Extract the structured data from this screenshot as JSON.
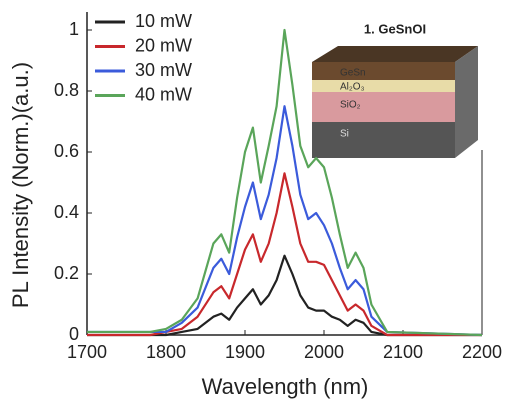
{
  "chart_data": {
    "type": "line",
    "x_label": "Wavelength (nm)",
    "y_label": "PL Intensity (Norm.)(a.u.)",
    "x": [
      1700,
      1780,
      1800,
      1820,
      1840,
      1860,
      1870,
      1880,
      1890,
      1900,
      1910,
      1920,
      1930,
      1940,
      1950,
      1960,
      1970,
      1980,
      1990,
      2000,
      2010,
      2020,
      2030,
      2040,
      2050,
      2060,
      2080,
      2200
    ],
    "series": [
      {
        "name": "10 mW",
        "color": "#222222",
        "values": [
          0,
          0,
          0,
          0.01,
          0.02,
          0.06,
          0.07,
          0.05,
          0.09,
          0.12,
          0.15,
          0.1,
          0.13,
          0.18,
          0.26,
          0.2,
          0.13,
          0.09,
          0.08,
          0.08,
          0.06,
          0.05,
          0.03,
          0.05,
          0.04,
          0.01,
          0,
          0
        ]
      },
      {
        "name": "20 mW",
        "color": "#c8282c",
        "values": [
          0,
          0,
          0.01,
          0.02,
          0.06,
          0.14,
          0.16,
          0.12,
          0.2,
          0.28,
          0.33,
          0.24,
          0.3,
          0.4,
          0.53,
          0.42,
          0.3,
          0.24,
          0.24,
          0.23,
          0.18,
          0.13,
          0.08,
          0.1,
          0.08,
          0.03,
          0,
          0
        ]
      },
      {
        "name": "30 mW",
        "color": "#3b5bdb",
        "values": [
          0.01,
          0.01,
          0.01,
          0.04,
          0.09,
          0.22,
          0.25,
          0.2,
          0.32,
          0.42,
          0.5,
          0.38,
          0.46,
          0.58,
          0.75,
          0.62,
          0.46,
          0.38,
          0.4,
          0.36,
          0.3,
          0.22,
          0.15,
          0.18,
          0.15,
          0.06,
          0.01,
          0
        ]
      },
      {
        "name": "40 mW",
        "color": "#5aa55a",
        "values": [
          0.01,
          0.01,
          0.02,
          0.05,
          0.12,
          0.3,
          0.33,
          0.27,
          0.45,
          0.6,
          0.68,
          0.5,
          0.62,
          0.75,
          1.0,
          0.82,
          0.62,
          0.55,
          0.58,
          0.55,
          0.45,
          0.33,
          0.22,
          0.27,
          0.22,
          0.1,
          0.01,
          0
        ]
      }
    ],
    "xlim": [
      1700,
      2200
    ],
    "xticks": [
      1700,
      1800,
      1900,
      2000,
      2100,
      2200
    ],
    "ylim": [
      0,
      1
    ],
    "yticks": [
      0,
      0.2,
      0.4,
      0.6,
      0.8,
      1
    ],
    "inset": {
      "title": "1. GeSnOI",
      "layers": [
        "GeSn",
        "Al₂O₃",
        "SiO₂",
        "Si"
      ]
    }
  }
}
